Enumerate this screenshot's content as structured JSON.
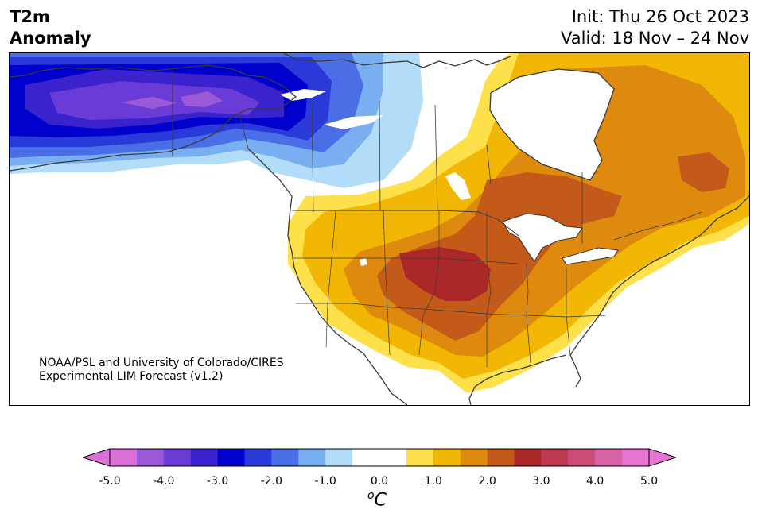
{
  "title": {
    "left_line1": "T2m",
    "left_line2": "Anomaly",
    "init": "Init: Thu 26 Oct 2023",
    "valid": "Valid: 18 Nov – 24 Nov"
  },
  "credit": {
    "line1": "NOAA/PSL and University of Colorado/CIRES",
    "line2": "Experimental LIM Forecast (v1.2)"
  },
  "colorbar": {
    "unit_prefix": "o",
    "unit": "C",
    "ticks": [
      "-5.0",
      "-4.0",
      "-3.0",
      "-2.0",
      "-1.0",
      "0.0",
      "1.0",
      "2.0",
      "3.0",
      "4.0",
      "5.0"
    ],
    "min": -5.0,
    "max": 5.0,
    "extend": "both",
    "colors": [
      "#da70d6",
      "#9b59d8",
      "#6a3bd6",
      "#3a22cc",
      "#0000cd",
      "#2a3ad8",
      "#4a6ee6",
      "#79aef0",
      "#b2dcf8",
      "#ffffff",
      "#ffffff",
      "#fde04a",
      "#f2b705",
      "#de8a0e",
      "#c45a1a",
      "#aa2828",
      "#be3a50",
      "#cc4c78",
      "#d862a6",
      "#e676d2"
    ],
    "under_color": "#da70d6",
    "over_color": "#e676d2"
  },
  "map": {
    "region": "North America",
    "shading": "2m temperature anomaly"
  }
}
